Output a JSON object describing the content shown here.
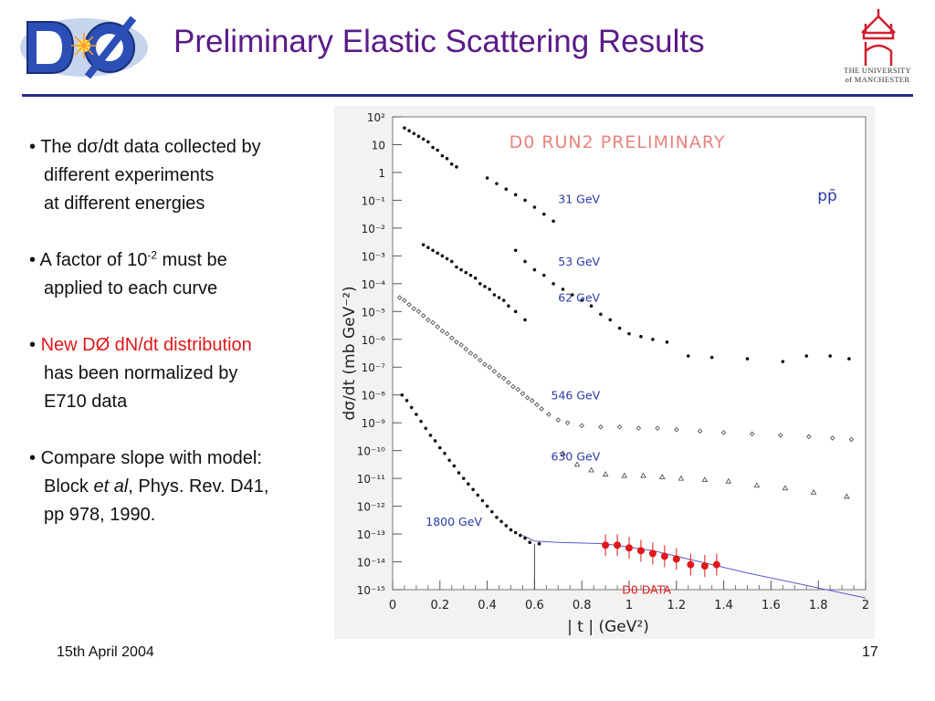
{
  "header": {
    "title": "Preliminary Elastic Scattering Results",
    "logo_left": "DØ",
    "university_line1": "THE UNIVERSITY",
    "university_line2": "of MANCHESTER"
  },
  "bullets": [
    {
      "lines": [
        "The dσ/dt data collected by",
        "different experiments",
        "at different energies"
      ]
    },
    {
      "lines": [
        "A factor of 10",
        "-2",
        " must be",
        "applied to each curve"
      ]
    },
    {
      "lines": [
        "New DØ dN/dt distribution",
        "has been normalized by",
        "E710 data"
      ]
    },
    {
      "lines": [
        "Compare slope with model:",
        "Block ",
        "et al",
        ", Phys. Rev. D41,",
        "pp 978, 1990."
      ]
    }
  ],
  "footer": {
    "date": "15th April 2004",
    "page": "17"
  },
  "colors": {
    "title": "#5a1a87",
    "label_blue": "#2a3aa8",
    "red": "#e01818",
    "rule": "#2b2b8a"
  },
  "chart_data": {
    "type": "scatter",
    "title": "D0 RUN2 PRELIMINARY",
    "subtitle": "pp̄",
    "xlabel": "| t | (GeV²)",
    "ylabel": "dσ/dt (mb GeV⁻²)",
    "xlim": [
      0,
      2
    ],
    "ylim_log10": [
      -15,
      2
    ],
    "log_y": true,
    "x_ticks": [
      "0",
      "0.2",
      "0.4",
      "0.6",
      "0.8",
      "1",
      "1.2",
      "1.4",
      "1.6",
      "1.8",
      "2"
    ],
    "y_ticks": [
      "10²",
      "10",
      "1",
      "10⁻¹",
      "10⁻²",
      "10⁻³",
      "10⁻⁴",
      "10⁻⁵",
      "10⁻⁶",
      "10⁻⁷",
      "10⁻⁸",
      "10⁻⁹",
      "10⁻¹⁰",
      "10⁻¹¹",
      "10⁻¹²",
      "10⁻¹³",
      "10⁻¹⁴",
      "10⁻¹⁵"
    ],
    "series": [
      {
        "name": "31 GeV",
        "marker": "dot",
        "points": [
          [
            0.05,
            1.6
          ],
          [
            0.07,
            1.5
          ],
          [
            0.09,
            1.4
          ],
          [
            0.11,
            1.3
          ],
          [
            0.13,
            1.2
          ],
          [
            0.15,
            1.1
          ],
          [
            0.17,
            0.9
          ],
          [
            0.19,
            0.8
          ],
          [
            0.21,
            0.6
          ],
          [
            0.23,
            0.5
          ],
          [
            0.25,
            0.3
          ],
          [
            0.27,
            0.2
          ],
          [
            0.4,
            -0.2
          ],
          [
            0.44,
            -0.4
          ],
          [
            0.48,
            -0.6
          ],
          [
            0.52,
            -0.8
          ],
          [
            0.56,
            -1.0
          ],
          [
            0.6,
            -1.25
          ],
          [
            0.64,
            -1.5
          ],
          [
            0.68,
            -1.75
          ]
        ]
      },
      {
        "name": "53 GeV",
        "marker": "dot",
        "points": [
          [
            0.13,
            -2.6
          ],
          [
            0.15,
            -2.7
          ],
          [
            0.17,
            -2.8
          ],
          [
            0.19,
            -2.9
          ],
          [
            0.21,
            -3.0
          ],
          [
            0.23,
            -3.1
          ],
          [
            0.25,
            -3.2
          ],
          [
            0.27,
            -3.4
          ],
          [
            0.29,
            -3.5
          ],
          [
            0.31,
            -3.6
          ],
          [
            0.33,
            -3.7
          ],
          [
            0.35,
            -3.8
          ],
          [
            0.37,
            -4.0
          ],
          [
            0.39,
            -4.1
          ],
          [
            0.41,
            -4.2
          ],
          [
            0.43,
            -4.4
          ],
          [
            0.45,
            -4.5
          ],
          [
            0.47,
            -4.6
          ],
          [
            0.49,
            -4.8
          ],
          [
            0.52,
            -5.0
          ],
          [
            0.56,
            -5.3
          ]
        ]
      },
      {
        "name": "62 GeV",
        "marker": "dot",
        "points": [
          [
            0.52,
            -2.8
          ],
          [
            0.56,
            -3.2
          ],
          [
            0.6,
            -3.5
          ],
          [
            0.64,
            -3.7
          ],
          [
            0.68,
            -4.0
          ],
          [
            0.72,
            -4.2
          ],
          [
            0.76,
            -4.4
          ],
          [
            0.8,
            -4.6
          ],
          [
            0.84,
            -4.8
          ],
          [
            0.88,
            -5.1
          ],
          [
            0.92,
            -5.3
          ],
          [
            0.96,
            -5.6
          ],
          [
            1.0,
            -5.8
          ],
          [
            1.05,
            -5.9
          ],
          [
            1.1,
            -6.0
          ],
          [
            1.16,
            -6.1
          ],
          [
            1.25,
            -6.6
          ],
          [
            1.35,
            -6.65
          ],
          [
            1.5,
            -6.7
          ],
          [
            1.65,
            -6.8
          ],
          [
            1.75,
            -6.6
          ],
          [
            1.85,
            -6.6
          ],
          [
            1.93,
            -6.7
          ]
        ]
      },
      {
        "name": "546 GeV",
        "marker": "diamond",
        "points": [
          [
            0.03,
            -4.5
          ],
          [
            0.05,
            -4.6
          ],
          [
            0.07,
            -4.75
          ],
          [
            0.09,
            -4.9
          ],
          [
            0.11,
            -5.0
          ],
          [
            0.13,
            -5.15
          ],
          [
            0.15,
            -5.3
          ],
          [
            0.17,
            -5.4
          ],
          [
            0.19,
            -5.55
          ],
          [
            0.21,
            -5.7
          ],
          [
            0.23,
            -5.8
          ],
          [
            0.25,
            -5.95
          ],
          [
            0.27,
            -6.1
          ],
          [
            0.29,
            -6.2
          ],
          [
            0.31,
            -6.35
          ],
          [
            0.33,
            -6.5
          ],
          [
            0.35,
            -6.6
          ],
          [
            0.37,
            -6.75
          ],
          [
            0.39,
            -6.9
          ],
          [
            0.41,
            -7.0
          ],
          [
            0.43,
            -7.15
          ],
          [
            0.45,
            -7.3
          ],
          [
            0.47,
            -7.4
          ],
          [
            0.49,
            -7.55
          ],
          [
            0.51,
            -7.7
          ],
          [
            0.53,
            -7.8
          ],
          [
            0.55,
            -7.95
          ],
          [
            0.57,
            -8.1
          ],
          [
            0.59,
            -8.2
          ],
          [
            0.61,
            -8.35
          ],
          [
            0.63,
            -8.5
          ],
          [
            0.66,
            -8.7
          ],
          [
            0.7,
            -8.9
          ],
          [
            0.74,
            -9.0
          ],
          [
            0.8,
            -9.1
          ],
          [
            0.88,
            -9.15
          ],
          [
            0.96,
            -9.15
          ],
          [
            1.04,
            -9.2
          ],
          [
            1.12,
            -9.2
          ],
          [
            1.2,
            -9.25
          ],
          [
            1.3,
            -9.3
          ],
          [
            1.4,
            -9.35
          ],
          [
            1.52,
            -9.4
          ],
          [
            1.64,
            -9.45
          ],
          [
            1.76,
            -9.5
          ],
          [
            1.86,
            -9.55
          ],
          [
            1.94,
            -9.6
          ]
        ]
      },
      {
        "name": "630 GeV",
        "marker": "triangle",
        "points": [
          [
            0.72,
            -10.1
          ],
          [
            0.78,
            -10.5
          ],
          [
            0.84,
            -10.7
          ],
          [
            0.9,
            -10.85
          ],
          [
            0.98,
            -10.9
          ],
          [
            1.06,
            -10.9
          ],
          [
            1.14,
            -10.95
          ],
          [
            1.22,
            -11.0
          ],
          [
            1.32,
            -11.05
          ],
          [
            1.42,
            -11.1
          ],
          [
            1.54,
            -11.25
          ],
          [
            1.66,
            -11.35
          ],
          [
            1.78,
            -11.5
          ],
          [
            1.92,
            -11.65
          ]
        ]
      },
      {
        "name": "1800 GeV",
        "marker": "dot",
        "points": [
          [
            0.04,
            -8.0
          ],
          [
            0.06,
            -8.2
          ],
          [
            0.08,
            -8.45
          ],
          [
            0.1,
            -8.7
          ],
          [
            0.12,
            -8.95
          ],
          [
            0.14,
            -9.2
          ],
          [
            0.16,
            -9.45
          ],
          [
            0.18,
            -9.65
          ],
          [
            0.2,
            -9.9
          ],
          [
            0.22,
            -10.1
          ],
          [
            0.24,
            -10.35
          ],
          [
            0.26,
            -10.55
          ],
          [
            0.28,
            -10.8
          ],
          [
            0.3,
            -11.0
          ],
          [
            0.32,
            -11.2
          ],
          [
            0.34,
            -11.4
          ],
          [
            0.36,
            -11.6
          ],
          [
            0.38,
            -11.8
          ],
          [
            0.4,
            -12.0
          ],
          [
            0.42,
            -12.2
          ],
          [
            0.44,
            -12.4
          ],
          [
            0.46,
            -12.55
          ],
          [
            0.48,
            -12.7
          ],
          [
            0.5,
            -12.85
          ],
          [
            0.52,
            -12.95
          ],
          [
            0.54,
            -13.05
          ],
          [
            0.56,
            -13.15
          ],
          [
            0.58,
            -13.3
          ],
          [
            0.62,
            -13.35
          ]
        ]
      },
      {
        "name": "D0 DATA",
        "marker": "red-dot",
        "color": "#e01818",
        "points": [
          [
            0.9,
            -13.4
          ],
          [
            0.95,
            -13.4
          ],
          [
            1.0,
            -13.5
          ],
          [
            1.05,
            -13.6
          ],
          [
            1.1,
            -13.7
          ],
          [
            1.15,
            -13.8
          ],
          [
            1.2,
            -13.9
          ],
          [
            1.26,
            -14.1
          ],
          [
            1.32,
            -14.15
          ],
          [
            1.37,
            -14.1
          ]
        ]
      }
    ],
    "model_curve": [
      [
        0.55,
        -13.05
      ],
      [
        0.6,
        -13.25
      ],
      [
        0.7,
        -13.3
      ],
      [
        0.9,
        -13.35
      ],
      [
        1.1,
        -13.6
      ],
      [
        1.3,
        -14.0
      ],
      [
        1.5,
        -14.4
      ],
      [
        1.75,
        -14.85
      ],
      [
        2.0,
        -15.3
      ]
    ],
    "series_labels": [
      {
        "text": "31 GeV",
        "x": 0.7,
        "y_log": -1.1
      },
      {
        "text": "53 GeV",
        "x": 0.7,
        "y_log": -3.35
      },
      {
        "text": "62 GeV",
        "x": 0.7,
        "y_log": -4.65
      },
      {
        "text": "546 GeV",
        "x": 0.67,
        "y_log": -8.15
      },
      {
        "text": "630 GeV",
        "x": 0.67,
        "y_log": -10.35
      },
      {
        "text": "1800 GeV",
        "x": 0.14,
        "y_log": -12.7
      },
      {
        "text": "D0 DATA",
        "x": 0.97,
        "y_log": -15.15
      }
    ],
    "grid": false,
    "legend": "none"
  }
}
